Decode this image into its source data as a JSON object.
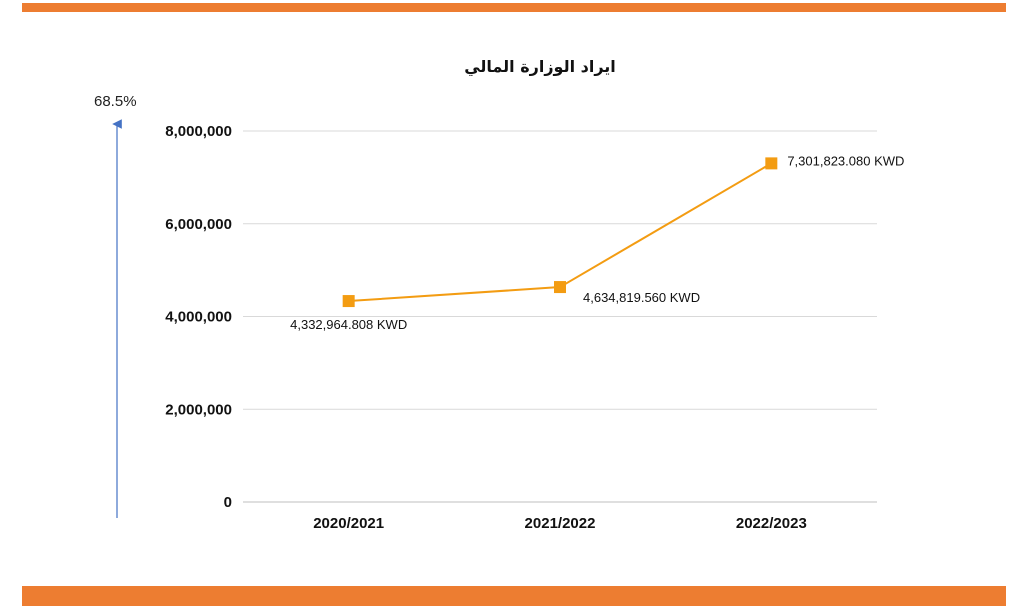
{
  "growth_label": "68.5%",
  "colors": {
    "accent": "#ED7D31",
    "series": "#F39C12",
    "arrow": "#4472C4",
    "grid": "#D9D9D9"
  },
  "chart_data": {
    "type": "line",
    "title": "ايراد الوزارة المالي",
    "categories": [
      "2020/2021",
      "2021/2022",
      "2022/2023"
    ],
    "series": [
      {
        "values": [
          4332964.808,
          4634819.56,
          7301823.08
        ]
      }
    ],
    "data_labels": [
      "4,332,964.808 KWD",
      "4,634,819.560 KWD",
      "7,301,823.080 KWD"
    ],
    "ylim": [
      0,
      8000000
    ],
    "yticks": [
      0,
      2000000,
      4000000,
      6000000,
      8000000
    ],
    "ytick_labels": [
      "0",
      "2,000,000",
      "4,000,000",
      "6,000,000",
      "8,000,000"
    ],
    "grid": true,
    "legend": "none",
    "marker": "square"
  }
}
